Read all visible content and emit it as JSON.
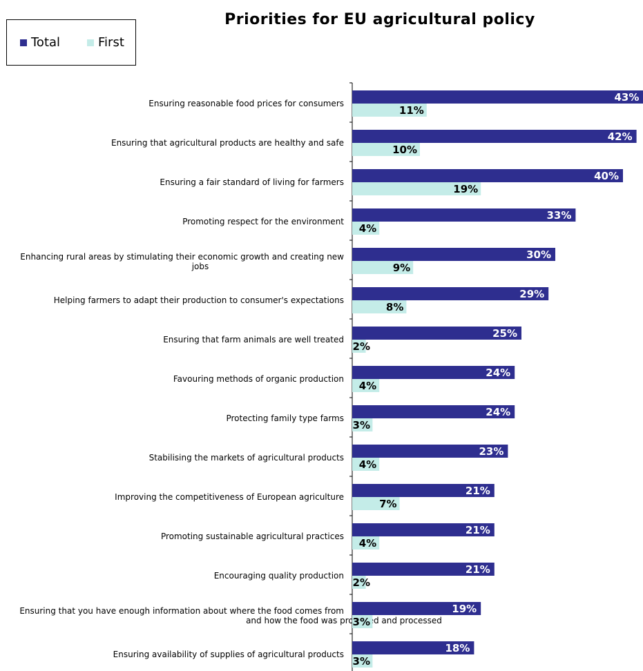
{
  "chart_data": {
    "type": "bar",
    "orientation": "horizontal",
    "title": "Priorities for EU agricultural policy",
    "legend_position": "top-left",
    "categories": [
      [
        "Ensuring reasonable food prices for consumers"
      ],
      [
        "Ensuring that agricultural products are healthy and safe"
      ],
      [
        "Ensuring a fair standard of living for farmers"
      ],
      [
        "Promoting respect for the environment"
      ],
      [
        "Enhancing rural areas by stimulating their economic growth and creating new",
        "jobs"
      ],
      [
        "Helping farmers to adapt their production to consumer's expectations"
      ],
      [
        "Ensuring that farm animals are well treated"
      ],
      [
        "Favouring methods of organic production"
      ],
      [
        "Protecting family type farms"
      ],
      [
        "Stabilising the markets of agricultural products"
      ],
      [
        "Improving the competitiveness of European agriculture"
      ],
      [
        "Promoting sustainable agricultural practices"
      ],
      [
        "Encouraging quality production"
      ],
      [
        "Ensuring that you have enough information about where the food comes from",
        "and how the food was produced and processed"
      ],
      [
        "Ensuring availability of supplies of agricultural products"
      ]
    ],
    "series": [
      {
        "name": "Total",
        "color": "#2e2e8f",
        "values": [
          43,
          42,
          40,
          33,
          30,
          29,
          25,
          24,
          24,
          23,
          21,
          21,
          21,
          19,
          18
        ]
      },
      {
        "name": "First",
        "color": "#c4ece8",
        "values": [
          11,
          10,
          19,
          4,
          9,
          8,
          2,
          4,
          3,
          4,
          7,
          4,
          2,
          3,
          3
        ]
      }
    ],
    "value_suffix": "%",
    "grid": false
  }
}
